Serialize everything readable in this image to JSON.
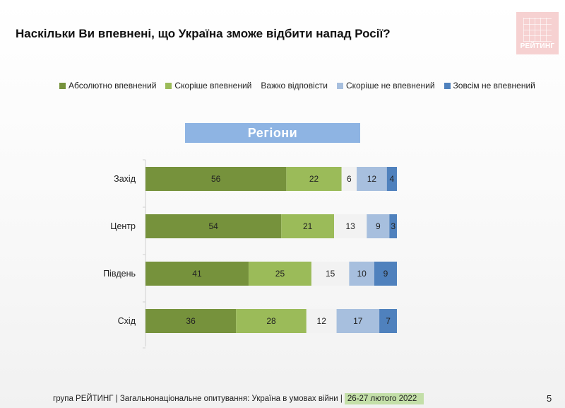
{
  "title": "Наскільки Ви впевнені, що Україна зможе відбити напад Росії?",
  "logo_text": "РЕЙТИНГ",
  "section_header": "Регіони",
  "footer": {
    "text": "група РЕЙТИНГ | Загальнонаціональне опитування: Україна в умовах війни |",
    "date": "26-27 лютого 2022"
  },
  "page_number": "5",
  "colors": {
    "absolutely_confident": "#76923c",
    "rather_confident": "#9bbb59",
    "hard_to_say": "#f2f2f2",
    "rather_not_confident": "#a7bfde",
    "not_at_all_confident": "#4f81bd"
  },
  "chart_data": {
    "type": "bar",
    "orientation": "horizontal",
    "stacked": true,
    "categories": [
      "Захід",
      "Центр",
      "Південь",
      "Схід"
    ],
    "series": [
      {
        "name": "Абсолютно впевнений",
        "color": "#76923c",
        "values": [
          56,
          54,
          41,
          36
        ]
      },
      {
        "name": "Скоріше впевнений",
        "color": "#9bbb59",
        "values": [
          22,
          21,
          25,
          28
        ]
      },
      {
        "name": "Важко відповісти",
        "color": "#f2f2f2",
        "values": [
          6,
          13,
          15,
          12
        ]
      },
      {
        "name": "Скоріше не впевнений",
        "color": "#a7bfde",
        "values": [
          12,
          9,
          10,
          17
        ]
      },
      {
        "name": "Зовсім не впевнений",
        "color": "#4f81bd",
        "values": [
          4,
          3,
          9,
          7
        ]
      }
    ],
    "xlim": [
      0,
      100
    ],
    "grid": false,
    "legend": "top",
    "data_labels": true
  }
}
